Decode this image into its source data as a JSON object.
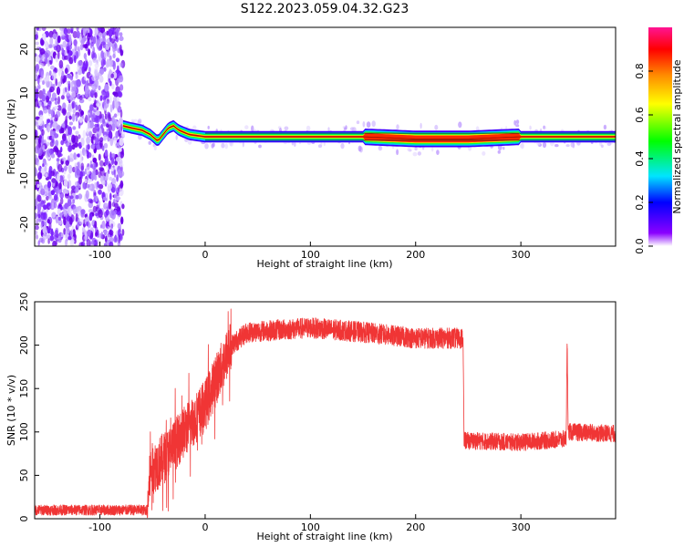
{
  "figure": {
    "title": "S122.2023.059.04.32.G23"
  },
  "chart_data": [
    {
      "type": "heatmap",
      "title": "S122.2023.059.04.32.G23",
      "xlabel": "Height of straight line (km)",
      "ylabel": "Frequency (Hz)",
      "xlim": [
        -162,
        390
      ],
      "ylim": [
        -25,
        25
      ],
      "xticks": [
        -100,
        0,
        100,
        200,
        300
      ],
      "yticks": [
        20,
        10,
        0,
        -10,
        -20
      ],
      "noise_region_x": [
        -162,
        -78
      ],
      "signal_band": [
        {
          "x": -78,
          "y": 2.5
        },
        {
          "x": -70,
          "y": 2.0
        },
        {
          "x": -60,
          "y": 1.5
        },
        {
          "x": -52,
          "y": 0.5
        },
        {
          "x": -45,
          "y": -1.0
        },
        {
          "x": -40,
          "y": 0.5
        },
        {
          "x": -35,
          "y": 2.0
        },
        {
          "x": -30,
          "y": 2.5
        },
        {
          "x": -25,
          "y": 1.5
        },
        {
          "x": -15,
          "y": 0.5
        },
        {
          "x": 0,
          "y": 0
        },
        {
          "x": 150,
          "y": 0
        },
        {
          "x": 200,
          "y": -0.5
        },
        {
          "x": 250,
          "y": -0.5
        },
        {
          "x": 300,
          "y": 0
        },
        {
          "x": 390,
          "y": 0
        }
      ],
      "colorbar": {
        "label": "Normalized spectral amplitude",
        "range": [
          0,
          1
        ],
        "ticks": [
          "0.0",
          "0.2",
          "0.4",
          "0.6",
          "0.8"
        ],
        "colors": [
          "#ffffff",
          "#7b00ff",
          "#0000ff",
          "#00e5ff",
          "#00ff00",
          "#ffff00",
          "#ff8c00",
          "#ff0000",
          "#ff1493"
        ]
      }
    },
    {
      "type": "line",
      "xlabel": "Height of straight line (km)",
      "ylabel": "SNR (10 * v/v)",
      "xlim": [
        -162,
        390
      ],
      "ylim": [
        0,
        250
      ],
      "xticks": [
        -100,
        0,
        100,
        200,
        300
      ],
      "yticks": [
        0,
        50,
        100,
        150,
        200,
        250
      ],
      "color": "#f03535",
      "trend": [
        {
          "x": -162,
          "y": 10
        },
        {
          "x": -55,
          "y": 10
        },
        {
          "x": -52,
          "y": 55
        },
        {
          "x": -35,
          "y": 75
        },
        {
          "x": -20,
          "y": 100
        },
        {
          "x": 0,
          "y": 130
        },
        {
          "x": 12,
          "y": 165
        },
        {
          "x": 25,
          "y": 200
        },
        {
          "x": 40,
          "y": 215
        },
        {
          "x": 100,
          "y": 220
        },
        {
          "x": 150,
          "y": 215
        },
        {
          "x": 200,
          "y": 208
        },
        {
          "x": 245,
          "y": 208
        },
        {
          "x": 246,
          "y": 90
        },
        {
          "x": 300,
          "y": 88
        },
        {
          "x": 343,
          "y": 92
        },
        {
          "x": 344,
          "y": 205
        },
        {
          "x": 345,
          "y": 100
        },
        {
          "x": 390,
          "y": 98
        }
      ]
    }
  ]
}
